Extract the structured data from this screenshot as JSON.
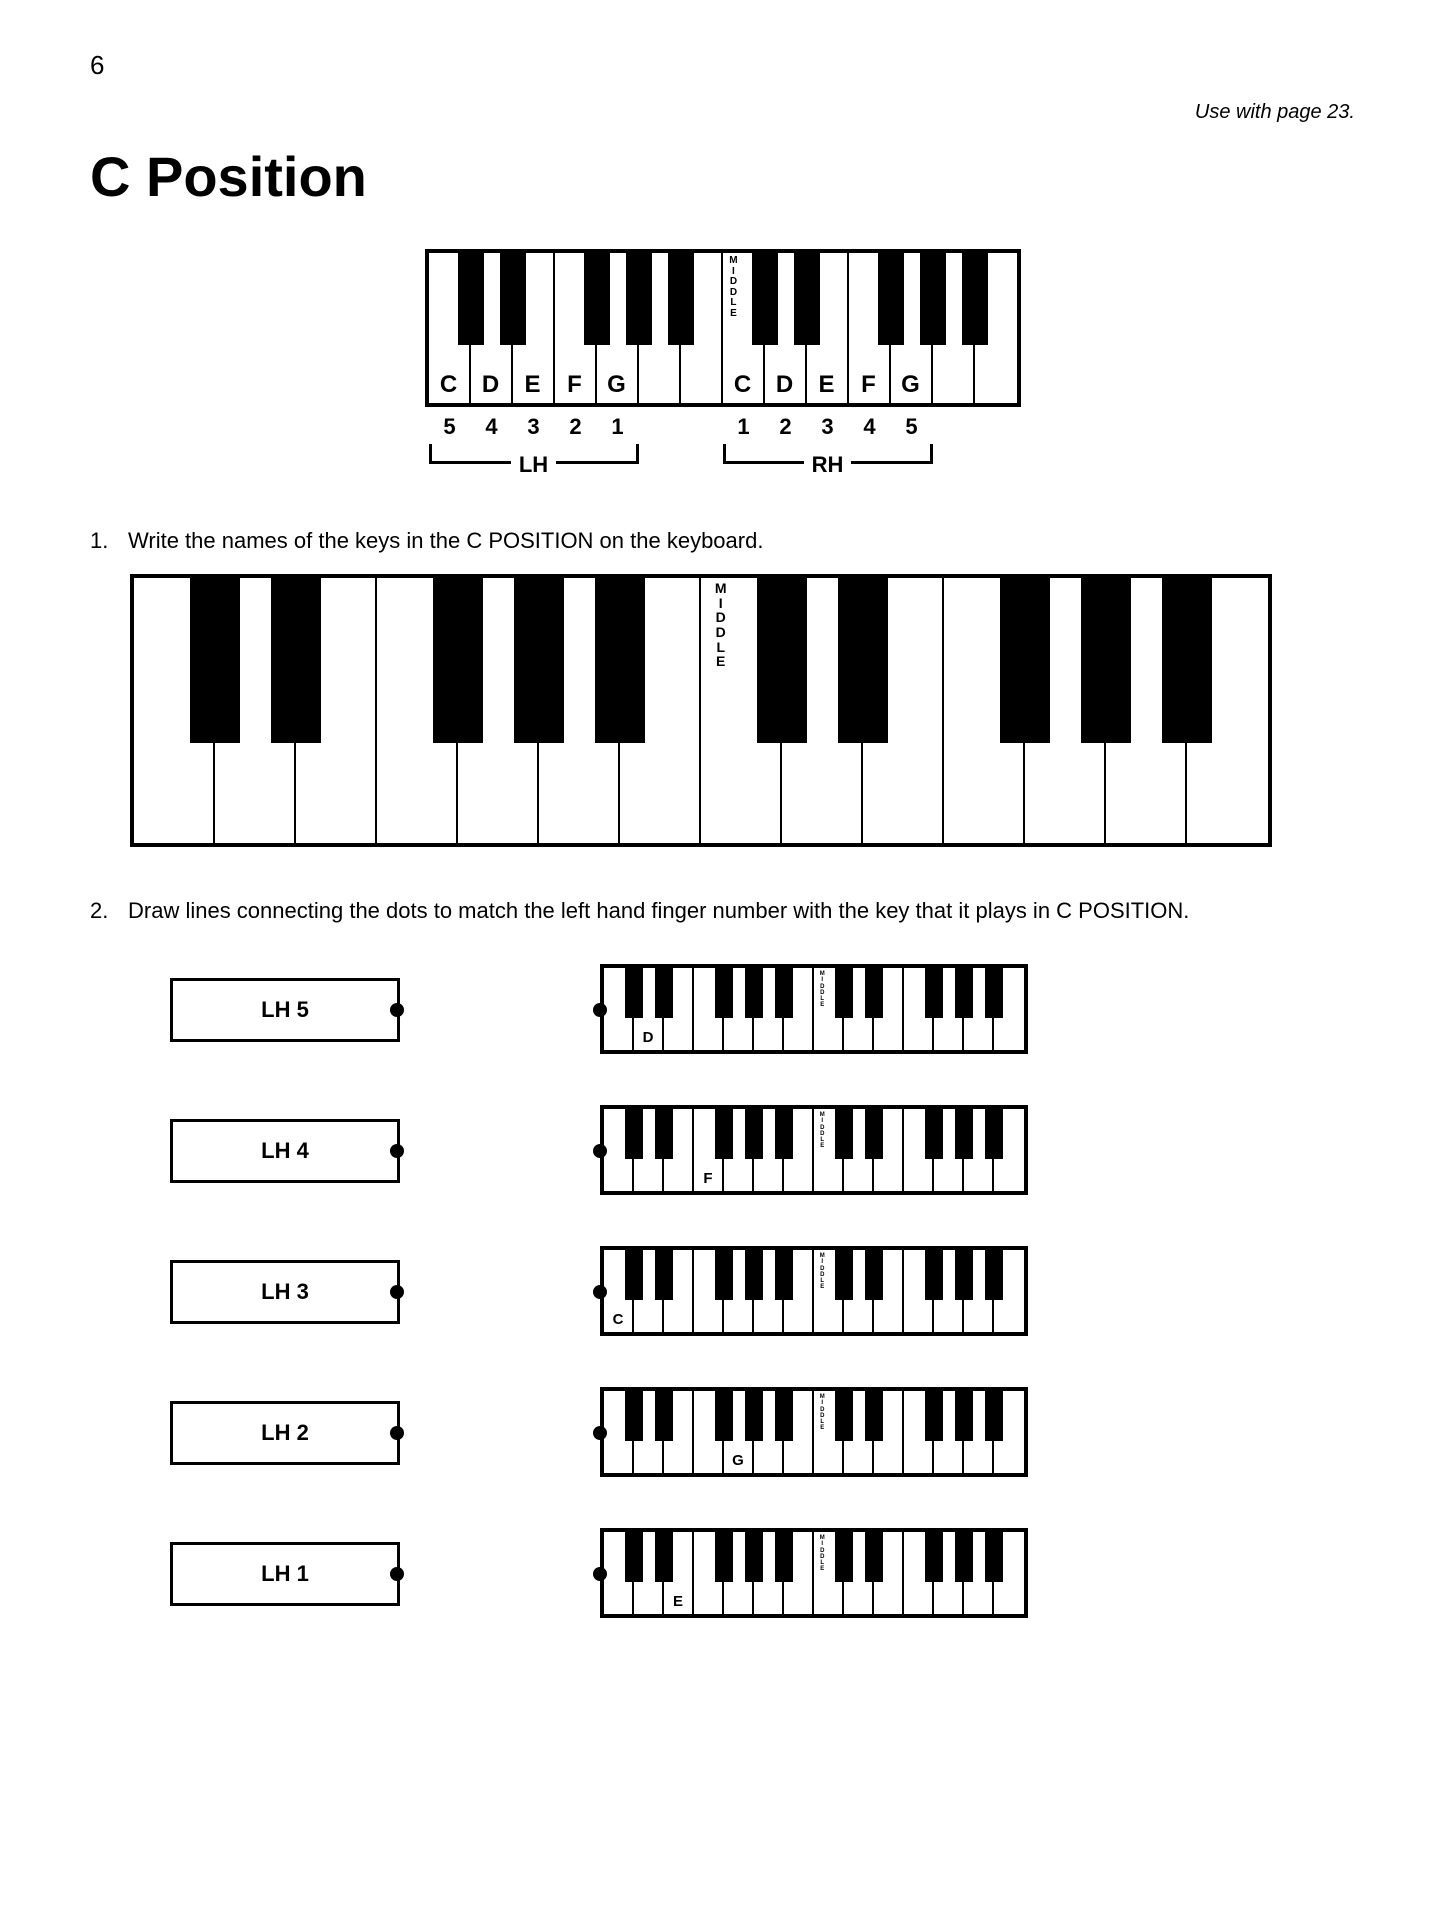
{
  "page_number": "6",
  "use_with": "Use with page 23.",
  "title": "C Position",
  "colors": {
    "bg": "#ffffff",
    "ink": "#000000"
  },
  "reference_keyboard": {
    "white_key_w": 42,
    "white_key_h": 150,
    "black_key_w": 26,
    "black_key_h": 92,
    "white_count": 14,
    "black_positions": [
      0,
      1,
      3,
      4,
      5,
      7,
      8,
      10,
      11,
      12
    ],
    "middle_index": 7,
    "middle_text": [
      "M",
      "I",
      "D",
      "D",
      "L",
      "E"
    ],
    "lh": {
      "labels": [
        "C",
        "D",
        "E",
        "F",
        "G"
      ],
      "start_index": 0,
      "fingers": [
        "5",
        "4",
        "3",
        "2",
        "1"
      ],
      "hand_label": "LH"
    },
    "rh": {
      "labels": [
        "C",
        "D",
        "E",
        "F",
        "G"
      ],
      "start_index": 7,
      "fingers": [
        "1",
        "2",
        "3",
        "4",
        "5"
      ],
      "hand_label": "RH"
    },
    "label_fontsize": 24
  },
  "q1": {
    "num": "1.",
    "text": "Write the names of the keys in the C POSITION on the keyboard.",
    "keyboard": {
      "white_key_w": 81,
      "white_key_h": 265,
      "black_key_w": 50,
      "black_key_h": 165,
      "white_count": 14,
      "black_positions": [
        0,
        1,
        3,
        4,
        5,
        7,
        8,
        10,
        11,
        12
      ],
      "middle_index": 7,
      "middle_text": [
        "M",
        "I",
        "D",
        "D",
        "L",
        "E"
      ],
      "middle_fontsize": 14
    }
  },
  "q2": {
    "num": "2.",
    "text": "Draw lines connecting the dots to match the left hand finger number with the key that it plays in C POSITION.",
    "items": [
      {
        "lh": "LH 5",
        "label": "D",
        "label_index": 1
      },
      {
        "lh": "LH 4",
        "label": "F",
        "label_index": 3
      },
      {
        "lh": "LH 3",
        "label": "C",
        "label_index": 0
      },
      {
        "lh": "LH 2",
        "label": "G",
        "label_index": 4
      },
      {
        "lh": "LH 1",
        "label": "E",
        "label_index": 2
      }
    ],
    "mini_keyboard": {
      "white_key_w": 30,
      "white_key_h": 82,
      "black_key_w": 18,
      "black_key_h": 50,
      "white_count": 14,
      "black_positions": [
        0,
        1,
        3,
        4,
        5,
        7,
        8,
        10,
        11,
        12
      ],
      "middle_index": 7,
      "middle_text": [
        "M",
        "I",
        "D",
        "D",
        "L",
        "E"
      ],
      "middle_fontsize": 6,
      "label_fontsize": 15
    }
  }
}
